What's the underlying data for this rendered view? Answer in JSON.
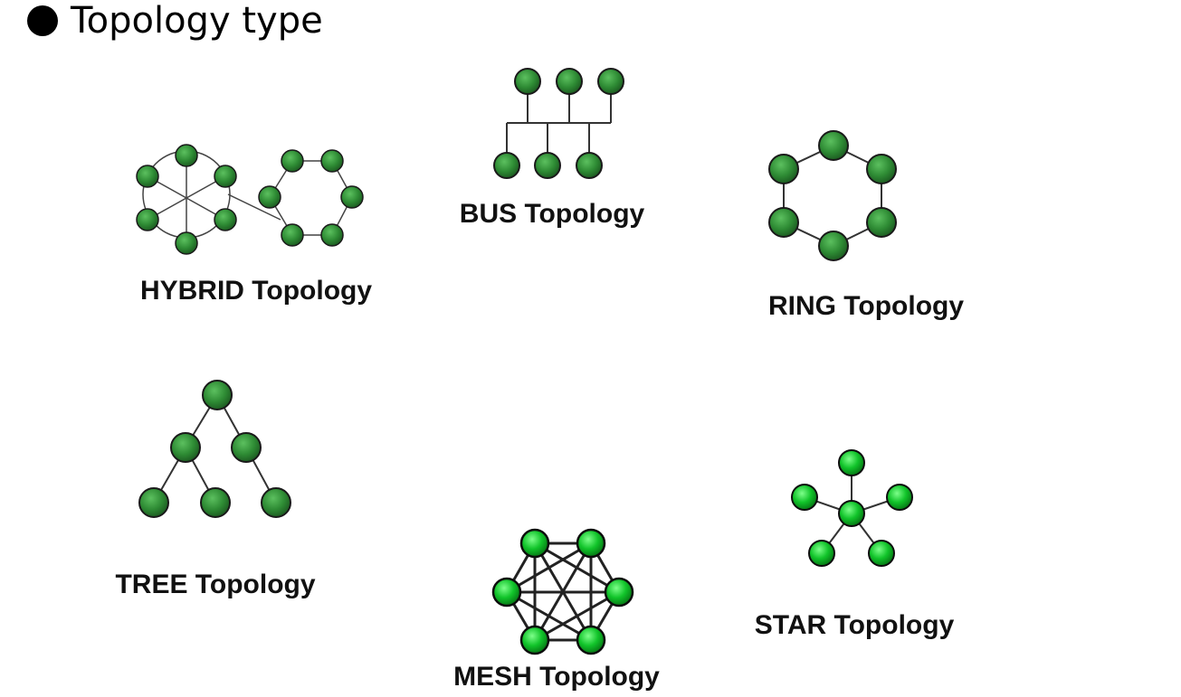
{
  "slide": {
    "title": "Topology type"
  },
  "topologies": {
    "bus": {
      "label": "BUS Topology"
    },
    "hybrid": {
      "label": "HYBRID Topology"
    },
    "ring": {
      "label": "RING Topology"
    },
    "tree": {
      "label": "TREE Topology"
    },
    "mesh": {
      "label": "MESH Topology"
    },
    "star": {
      "label": "STAR Topology"
    }
  },
  "colors": {
    "node_fill_dark": "#2e7d32",
    "node_fill_bright": "#00b020",
    "node_stroke": "#1a1a1a",
    "edge": "#333333"
  }
}
